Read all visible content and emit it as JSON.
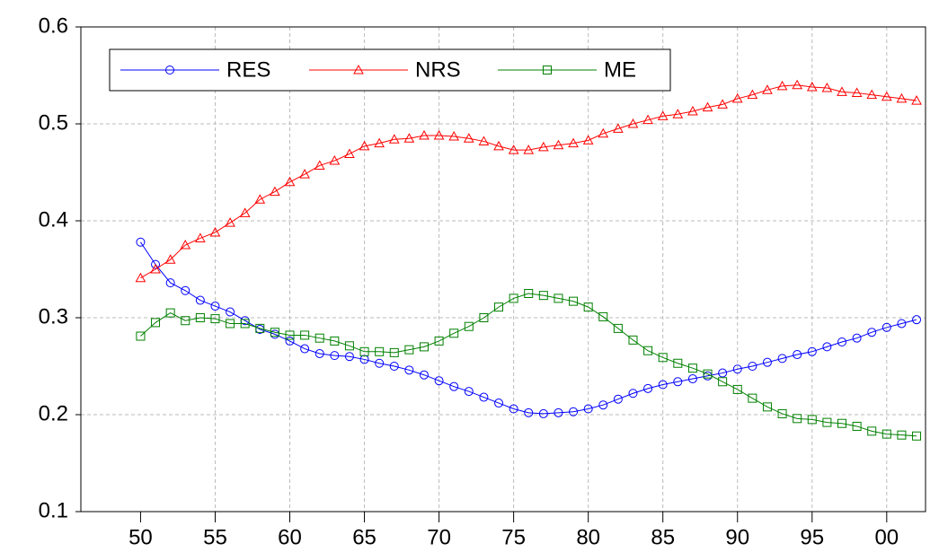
{
  "chart_data": {
    "type": "line",
    "x": [
      1950,
      1951,
      1952,
      1953,
      1954,
      1955,
      1956,
      1957,
      1958,
      1959,
      1960,
      1961,
      1962,
      1963,
      1964,
      1965,
      1966,
      1967,
      1968,
      1969,
      1970,
      1971,
      1972,
      1973,
      1974,
      1975,
      1976,
      1977,
      1978,
      1979,
      1980,
      1981,
      1982,
      1983,
      1984,
      1985,
      1986,
      1987,
      1988,
      1989,
      1990,
      1991,
      1992,
      1993,
      1994,
      1995,
      1996,
      1997,
      1998,
      1999,
      2000,
      2001,
      2002
    ],
    "series": [
      {
        "name": "RES",
        "color": "#0000ff",
        "marker": "circle",
        "values": [
          0.378,
          0.355,
          0.336,
          0.328,
          0.318,
          0.312,
          0.306,
          0.297,
          0.288,
          0.283,
          0.276,
          0.268,
          0.263,
          0.261,
          0.26,
          0.257,
          0.253,
          0.25,
          0.246,
          0.241,
          0.235,
          0.229,
          0.224,
          0.218,
          0.212,
          0.206,
          0.202,
          0.201,
          0.202,
          0.203,
          0.206,
          0.21,
          0.216,
          0.222,
          0.227,
          0.231,
          0.234,
          0.237,
          0.24,
          0.243,
          0.247,
          0.25,
          0.254,
          0.258,
          0.262,
          0.265,
          0.27,
          0.275,
          0.279,
          0.285,
          0.29,
          0.294,
          0.298
        ]
      },
      {
        "name": "NRS",
        "color": "#ff0000",
        "marker": "triangle",
        "values": [
          0.341,
          0.35,
          0.36,
          0.375,
          0.382,
          0.388,
          0.398,
          0.408,
          0.422,
          0.43,
          0.44,
          0.448,
          0.457,
          0.462,
          0.469,
          0.477,
          0.48,
          0.484,
          0.485,
          0.488,
          0.488,
          0.487,
          0.485,
          0.482,
          0.477,
          0.473,
          0.473,
          0.476,
          0.478,
          0.48,
          0.483,
          0.49,
          0.495,
          0.5,
          0.504,
          0.508,
          0.51,
          0.513,
          0.517,
          0.52,
          0.526,
          0.53,
          0.535,
          0.539,
          0.54,
          0.538,
          0.537,
          0.533,
          0.532,
          0.53,
          0.528,
          0.526,
          0.524
        ]
      },
      {
        "name": "ME",
        "color": "#008000",
        "marker": "square",
        "values": [
          0.281,
          0.295,
          0.305,
          0.297,
          0.3,
          0.299,
          0.294,
          0.294,
          0.289,
          0.285,
          0.282,
          0.282,
          0.279,
          0.276,
          0.271,
          0.265,
          0.265,
          0.264,
          0.267,
          0.27,
          0.276,
          0.284,
          0.291,
          0.3,
          0.311,
          0.32,
          0.325,
          0.323,
          0.32,
          0.317,
          0.311,
          0.301,
          0.289,
          0.277,
          0.266,
          0.259,
          0.253,
          0.248,
          0.242,
          0.234,
          0.226,
          0.217,
          0.208,
          0.201,
          0.196,
          0.195,
          0.192,
          0.191,
          0.188,
          0.183,
          0.18,
          0.179,
          0.178
        ]
      }
    ],
    "xlim": [
      1946,
      2002.6
    ],
    "xticks": [
      {
        "value": 1950,
        "label": "50"
      },
      {
        "value": 1955,
        "label": "55"
      },
      {
        "value": 1960,
        "label": "60"
      },
      {
        "value": 1965,
        "label": "65"
      },
      {
        "value": 1970,
        "label": "70"
      },
      {
        "value": 1975,
        "label": "75"
      },
      {
        "value": 1980,
        "label": "80"
      },
      {
        "value": 1985,
        "label": "85"
      },
      {
        "value": 1990,
        "label": "90"
      },
      {
        "value": 1995,
        "label": "95"
      },
      {
        "value": 2000,
        "label": "00"
      }
    ],
    "ylim": [
      0.1,
      0.6
    ],
    "yticks": [
      0.1,
      0.2,
      0.3,
      0.4,
      0.5,
      0.6
    ],
    "grid": true,
    "legend": "top-left"
  }
}
